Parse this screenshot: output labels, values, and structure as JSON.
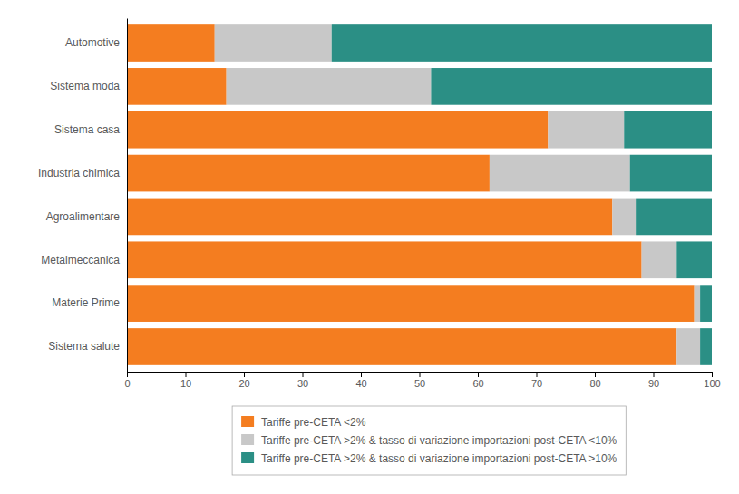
{
  "chart_data": {
    "type": "bar",
    "orientation": "horizontal",
    "stacked": true,
    "categories": [
      "Automotive",
      "Sistema moda",
      "Sistema casa",
      "Industria chimica",
      "Agroalimentare",
      "Metalmeccanica",
      "Materie Prime",
      "Sistema salute"
    ],
    "series": [
      {
        "name": "Tariffe pre-CETA <2%",
        "color": "#F47D20",
        "values": [
          15,
          17,
          72,
          62,
          83,
          88,
          97,
          94
        ]
      },
      {
        "name": "Tariffe pre-CETA >2% & tasso di variazione importazioni post-CETA <10%",
        "color": "#C8C8C8",
        "values": [
          20,
          35,
          13,
          24,
          4,
          6,
          1,
          4
        ]
      },
      {
        "name": "Tariffe pre-CETA >2% & tasso di variazione importazioni post-CETA >10%",
        "color": "#2B8F85",
        "values": [
          65,
          48,
          15,
          14,
          13,
          6,
          2,
          2
        ]
      }
    ],
    "xlim": [
      0,
      100
    ],
    "xticks": [
      0,
      10,
      20,
      30,
      40,
      50,
      60,
      70,
      80,
      90,
      100
    ],
    "grid": false,
    "legend": "bottom"
  }
}
